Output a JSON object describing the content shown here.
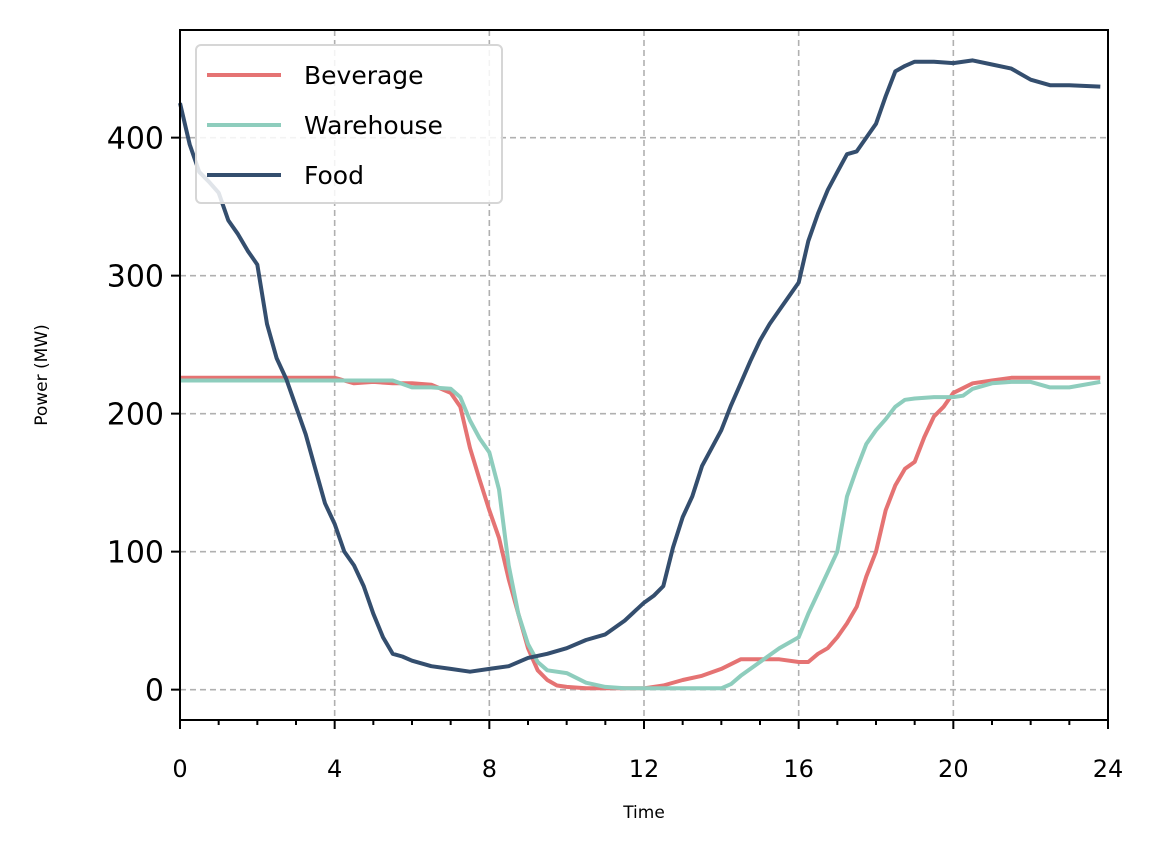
{
  "chart_data": {
    "type": "line",
    "title": "",
    "xlabel": "Time",
    "ylabel": "Power (MW)",
    "xlim": [
      0,
      24
    ],
    "ylim": [
      -22,
      478
    ],
    "xticks": [
      0,
      4,
      8,
      12,
      16,
      20,
      24
    ],
    "xtick_labels": [
      "0",
      "4",
      "8",
      "12",
      "16",
      "20",
      "24"
    ],
    "yticks": [
      0,
      100,
      200,
      300,
      400
    ],
    "ytick_labels": [
      "0",
      "100",
      "200",
      "300",
      "400"
    ],
    "grid": true,
    "legend": "upper-left",
    "series": [
      {
        "name": "Beverage",
        "color": "#e57373",
        "x": [
          0,
          0.5,
          1,
          1.5,
          2,
          2.5,
          3,
          3.5,
          4,
          4.5,
          5,
          5.5,
          6,
          6.5,
          7,
          7.25,
          7.5,
          7.75,
          8,
          8.25,
          8.5,
          8.75,
          9,
          9.25,
          9.5,
          9.75,
          10,
          10.5,
          11,
          11.5,
          12,
          12.5,
          13,
          13.5,
          14,
          14.5,
          15,
          15.5,
          16,
          16.25,
          16.5,
          16.75,
          17,
          17.25,
          17.5,
          17.75,
          18,
          18.25,
          18.5,
          18.75,
          19,
          19.25,
          19.5,
          19.75,
          20,
          20.5,
          21,
          21.5,
          22,
          22.5,
          23,
          23.8
        ],
        "values": [
          226,
          226,
          226,
          226,
          226,
          226,
          226,
          226,
          226,
          222,
          223,
          222,
          222,
          221,
          215,
          205,
          175,
          152,
          130,
          110,
          80,
          55,
          30,
          14,
          7,
          3,
          2,
          1,
          1,
          1,
          1,
          3,
          7,
          10,
          15,
          22,
          22,
          22,
          20,
          20,
          26,
          30,
          38,
          48,
          60,
          82,
          100,
          130,
          148,
          160,
          165,
          183,
          198,
          205,
          215,
          222,
          224,
          226,
          226,
          226,
          226,
          226
        ]
      },
      {
        "name": "Warehouse",
        "color": "#8ecdbd",
        "x": [
          0,
          0.5,
          1,
          1.5,
          2,
          2.5,
          3,
          3.5,
          4,
          4.5,
          5,
          5.5,
          6,
          6.5,
          7,
          7.25,
          7.5,
          7.75,
          8,
          8.25,
          8.5,
          8.75,
          9,
          9.25,
          9.5,
          10,
          10.5,
          11,
          11.5,
          12,
          12.5,
          13,
          13.5,
          14,
          14.25,
          14.5,
          15,
          15.5,
          16,
          16.25,
          16.5,
          16.75,
          17,
          17.25,
          17.5,
          17.75,
          18,
          18.25,
          18.5,
          18.75,
          19,
          19.5,
          20,
          20.25,
          20.5,
          21,
          21.5,
          22,
          22.5,
          23,
          23.8
        ],
        "values": [
          224,
          224,
          224,
          224,
          224,
          224,
          224,
          224,
          224,
          224,
          224,
          224,
          219,
          219,
          218,
          212,
          195,
          182,
          172,
          145,
          90,
          55,
          33,
          20,
          14,
          12,
          5,
          2,
          1,
          1,
          1,
          1,
          1,
          1,
          4,
          10,
          20,
          30,
          38,
          55,
          70,
          85,
          100,
          140,
          160,
          178,
          188,
          196,
          205,
          210,
          211,
          212,
          212,
          213,
          218,
          222,
          223,
          223,
          219,
          219,
          223
        ]
      },
      {
        "name": "Food",
        "color": "#344e6e",
        "x": [
          0,
          0.25,
          0.5,
          0.75,
          1,
          1.25,
          1.5,
          1.75,
          2,
          2.25,
          2.5,
          2.75,
          3,
          3.25,
          3.5,
          3.75,
          4,
          4.25,
          4.5,
          4.75,
          5,
          5.25,
          5.5,
          5.75,
          6,
          6.5,
          7,
          7.5,
          8,
          8.5,
          9,
          9.5,
          10,
          10.5,
          11,
          11.5,
          12,
          12.25,
          12.5,
          12.75,
          13,
          13.25,
          13.5,
          13.75,
          14,
          14.25,
          14.5,
          14.75,
          15,
          15.25,
          15.5,
          15.75,
          16,
          16.25,
          16.5,
          16.75,
          17,
          17.25,
          17.5,
          17.75,
          18,
          18.25,
          18.5,
          18.75,
          19,
          19.5,
          20,
          20.5,
          21,
          21.5,
          22,
          22.5,
          23,
          23.8
        ],
        "values": [
          425,
          395,
          375,
          368,
          360,
          340,
          330,
          318,
          308,
          265,
          240,
          225,
          205,
          185,
          160,
          135,
          120,
          100,
          90,
          75,
          55,
          38,
          26,
          24,
          21,
          17,
          15,
          13,
          15,
          17,
          23,
          26,
          30,
          36,
          40,
          50,
          63,
          68,
          75,
          103,
          125,
          140,
          162,
          175,
          188,
          206,
          222,
          238,
          253,
          265,
          275,
          285,
          295,
          325,
          345,
          362,
          375,
          388,
          390,
          400,
          410,
          430,
          448,
          452,
          455,
          455,
          454,
          456,
          453,
          450,
          442,
          438,
          438,
          437
        ]
      }
    ]
  }
}
